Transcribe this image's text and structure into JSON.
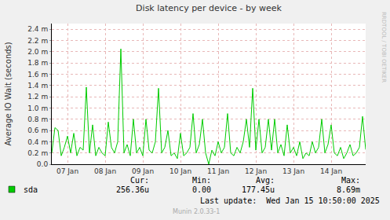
{
  "chart_data": {
    "type": "line",
    "title": "Disk latency per device - by week",
    "y_label": "Average IO Wait (seconds)",
    "categories": [
      null,
      null,
      null,
      null,
      null,
      "07 Jan",
      null,
      null,
      null,
      null,
      null,
      null,
      null,
      null,
      null,
      null,
      null,
      "08 Jan",
      null,
      null,
      null,
      null,
      null,
      null,
      null,
      null,
      null,
      null,
      null,
      "09 Jan",
      null,
      null,
      null,
      null,
      null,
      null,
      null,
      null,
      null,
      null,
      null,
      "10 Jan",
      null,
      null,
      null,
      null,
      null,
      null,
      null,
      null,
      null,
      null,
      null,
      "11 Jan",
      null,
      null,
      null,
      null,
      null,
      null,
      null,
      null,
      null,
      null,
      null,
      "12 Jan",
      null,
      null,
      null,
      null,
      null,
      null,
      null,
      null,
      null,
      null,
      null,
      "13 Jan",
      null,
      null,
      null,
      null,
      null,
      null,
      null,
      null,
      null,
      null,
      null,
      "14 Jan",
      null,
      null,
      null,
      null,
      null,
      null,
      null,
      null,
      null,
      null,
      null
    ],
    "series": [
      {
        "name": "sda",
        "color": "#00cc00",
        "values": [
          0.0002,
          0.00065,
          0.0006,
          0.00015,
          0.0003,
          0.0005,
          0.0002,
          0.00055,
          0.00015,
          0.0003,
          0.00025,
          0.00137,
          0.0002,
          0.0007,
          0.00015,
          0.0003,
          0.0002,
          0.00015,
          0.00075,
          0.0003,
          0.0002,
          0.0004,
          0.00205,
          0.0002,
          0.00035,
          0.00015,
          0.0008,
          0.0002,
          0.0003,
          0.00015,
          0.0008,
          0.00025,
          0.0002,
          0.0004,
          0.00135,
          0.0002,
          0.0003,
          0.0006,
          0.00015,
          0.0002,
          0.0001,
          0.00055,
          0.00015,
          0.0002,
          0.0003,
          0.0009,
          0.0002,
          0.00035,
          0.0008,
          0.0002,
          0.0,
          0.00025,
          0.00015,
          0.0004,
          0.0002,
          0.0003,
          0.0009,
          0.0002,
          0.00015,
          0.0003,
          0.0002,
          0.0004,
          0.0008,
          0.0003,
          0.00135,
          0.00025,
          0.0008,
          0.0002,
          0.0003,
          0.0008,
          0.00025,
          0.0008,
          0.0002,
          0.00035,
          0.00015,
          0.0007,
          0.0002,
          0.0003,
          0.00015,
          0.0004,
          0.0001,
          0.0002,
          0.00015,
          0.0004,
          0.0002,
          0.0003,
          0.0008,
          0.0002,
          0.00035,
          0.0007,
          0.0002,
          0.00015,
          0.0003,
          0.0001,
          0.0002,
          0.00035,
          0.00015,
          0.0002,
          0.0003,
          0.00085,
          0.00026
        ]
      }
    ],
    "ylim": [
      0,
      0.0025
    ],
    "yticks": [
      {
        "value": 0,
        "label": "0.0"
      },
      {
        "value": 0.0002,
        "label": "0.2 m"
      },
      {
        "value": 0.0004,
        "label": "0.4 m"
      },
      {
        "value": 0.0006,
        "label": "0.6 m"
      },
      {
        "value": 0.0008,
        "label": "0.8 m"
      },
      {
        "value": 0.001,
        "label": "1.0 m"
      },
      {
        "value": 0.0012,
        "label": "1.2 m"
      },
      {
        "value": 0.0014,
        "label": "1.4 m"
      },
      {
        "value": 0.0016,
        "label": "1.6 m"
      },
      {
        "value": 0.0018,
        "label": "1.8 m"
      },
      {
        "value": 0.002,
        "label": "2.0 m"
      },
      {
        "value": 0.0022,
        "label": "2.2 m"
      },
      {
        "value": 0.0024,
        "label": "2.4 m"
      }
    ],
    "grid": true
  },
  "stats": [
    {
      "label": "Cur:",
      "value": "256.36u"
    },
    {
      "label": "Min:",
      "value": "0.00"
    },
    {
      "label": "Avg:",
      "value": "177.45u"
    },
    {
      "label": "Max:",
      "value": "8.69m"
    }
  ],
  "last_update": "Last update:  Wed Jan 15 10:50:00 2025",
  "version": "Munin 2.0.33-1",
  "side_text": "RRDTOOL / TOBI OETIKER"
}
